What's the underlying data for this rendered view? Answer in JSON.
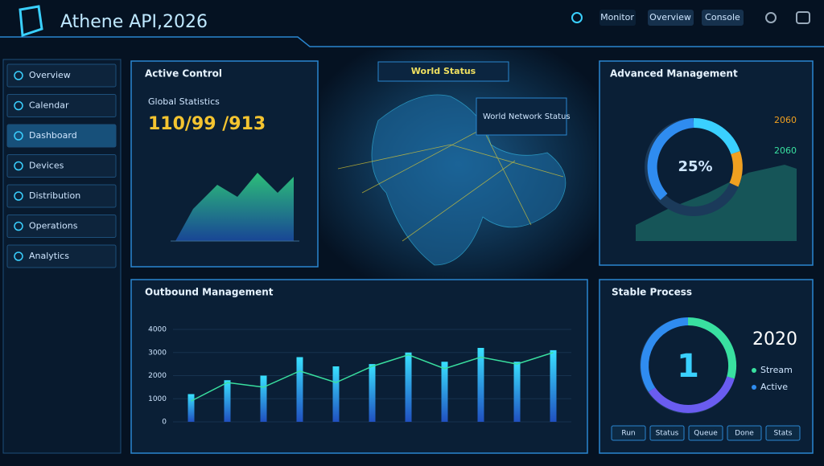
{
  "header": {
    "title": "Athene API,2026",
    "buttons": [
      "Monitor",
      "Overview",
      "Console"
    ]
  },
  "sidebar": {
    "items": [
      "Overview",
      "Calendar",
      "Dashboard",
      "Devices",
      "Distribution",
      "Operations",
      "Analytics"
    ]
  },
  "active_panel": {
    "title": "Active Control",
    "subtitle": "Global Statistics",
    "value": "110/99 /913"
  },
  "map_panel": {
    "title": "World Status",
    "tooltip": "World Network Status"
  },
  "advanced_panel": {
    "title": "Advanced Management",
    "center": "25%",
    "stat_a": "2060",
    "stat_b": "2060"
  },
  "process_panel": {
    "title": "Stable Process",
    "center": "1",
    "year": "2020",
    "legend": [
      "Stream",
      "Active"
    ],
    "tabs": [
      "Run",
      "Status",
      "Queue",
      "Done",
      "Stats"
    ]
  },
  "chart_data": {
    "type": "bar",
    "title": "Outbound Management",
    "categories": [
      null,
      null,
      null,
      null,
      null,
      null,
      null,
      null,
      null,
      null,
      null
    ],
    "series": [
      {
        "color": "#2f8cf0",
        "values": [
          1200,
          1800,
          2000,
          2800,
          2400,
          2500,
          3000,
          2600,
          3200,
          2600,
          3100
        ]
      },
      {
        "color": "#39e0a0",
        "type": "line",
        "values": [
          900,
          1700,
          1500,
          2200,
          1700,
          2400,
          2900,
          2300,
          2800,
          2500,
          3000
        ]
      }
    ],
    "ylim": [
      0,
      4000
    ],
    "yticks": [
      0,
      1000,
      2000,
      3000,
      4000
    ],
    "grid": true
  }
}
